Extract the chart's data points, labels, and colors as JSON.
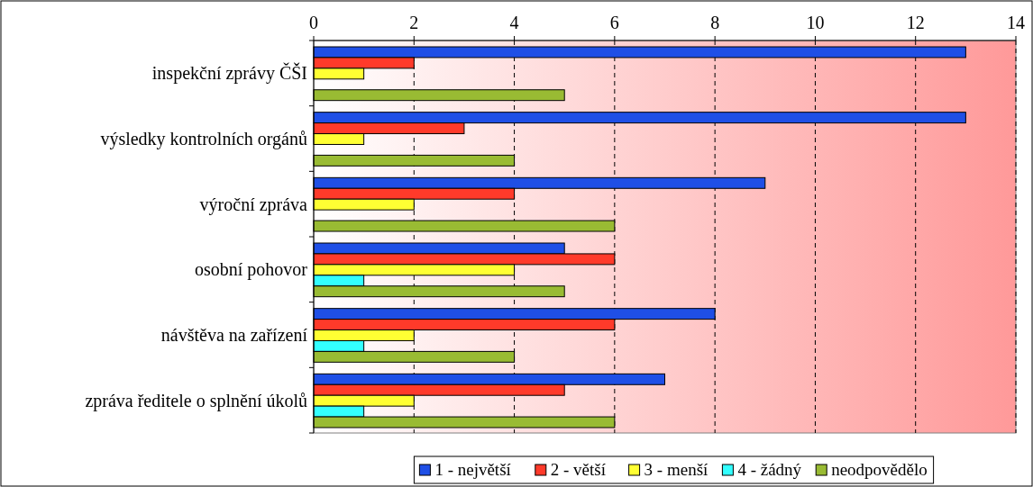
{
  "chart_data": {
    "type": "bar",
    "orientation": "horizontal",
    "categories": [
      "inspekční zprávy ČŠI",
      "výsledky kontrolních orgánů",
      "výroční zpráva",
      "osobní pohovor",
      "návštěva na zařízení",
      "zpráva ředitele o splnění úkolů"
    ],
    "series": [
      {
        "name": "1 - největší",
        "color": "#1f4fe6",
        "values": [
          13,
          13,
          9,
          5,
          8,
          7
        ]
      },
      {
        "name": "2 - větší",
        "color": "#ff3a2a",
        "values": [
          2,
          3,
          4,
          6,
          6,
          5
        ]
      },
      {
        "name": "3 - menší",
        "color": "#ffff33",
        "values": [
          1,
          1,
          2,
          4,
          2,
          2
        ]
      },
      {
        "name": "4 - žádný",
        "color": "#33ffff",
        "values": [
          0,
          0,
          0,
          1,
          1,
          1
        ]
      },
      {
        "name": "neodpovědělo",
        "color": "#99bb33",
        "values": [
          5,
          4,
          6,
          5,
          4,
          6
        ]
      }
    ],
    "xlim": [
      0,
      14
    ],
    "xticks": [
      0,
      2,
      4,
      6,
      8,
      10,
      12,
      14
    ],
    "grid": "x",
    "legend": "bottom"
  }
}
